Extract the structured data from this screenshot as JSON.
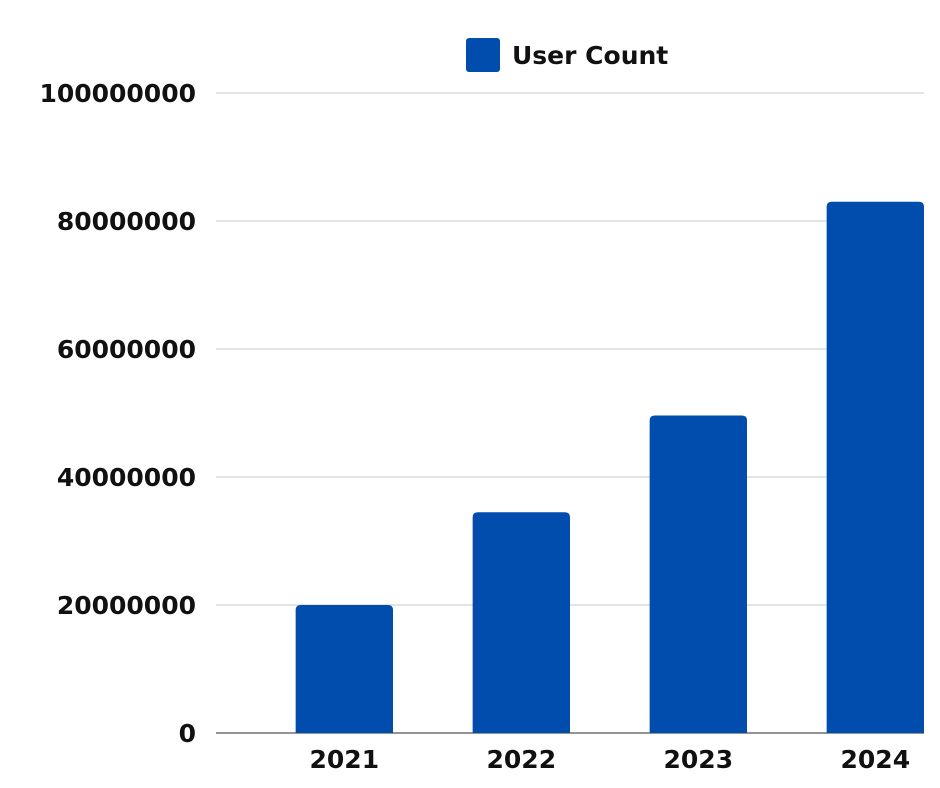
{
  "chart_data": {
    "type": "bar",
    "categories": [
      "2021",
      "2022",
      "2023",
      "2024"
    ],
    "series": [
      {
        "name": "User Count",
        "color": "#014DAD",
        "values": [
          20000000,
          34500000,
          49600000,
          83000000
        ]
      }
    ],
    "yticks": [
      "0",
      "20000000",
      "40000000",
      "60000000",
      "80000000",
      "100000000"
    ],
    "ylim": [
      0,
      100000000
    ],
    "legend_position": "top-center",
    "grid": true,
    "title": "",
    "xlabel": "",
    "ylabel": ""
  }
}
